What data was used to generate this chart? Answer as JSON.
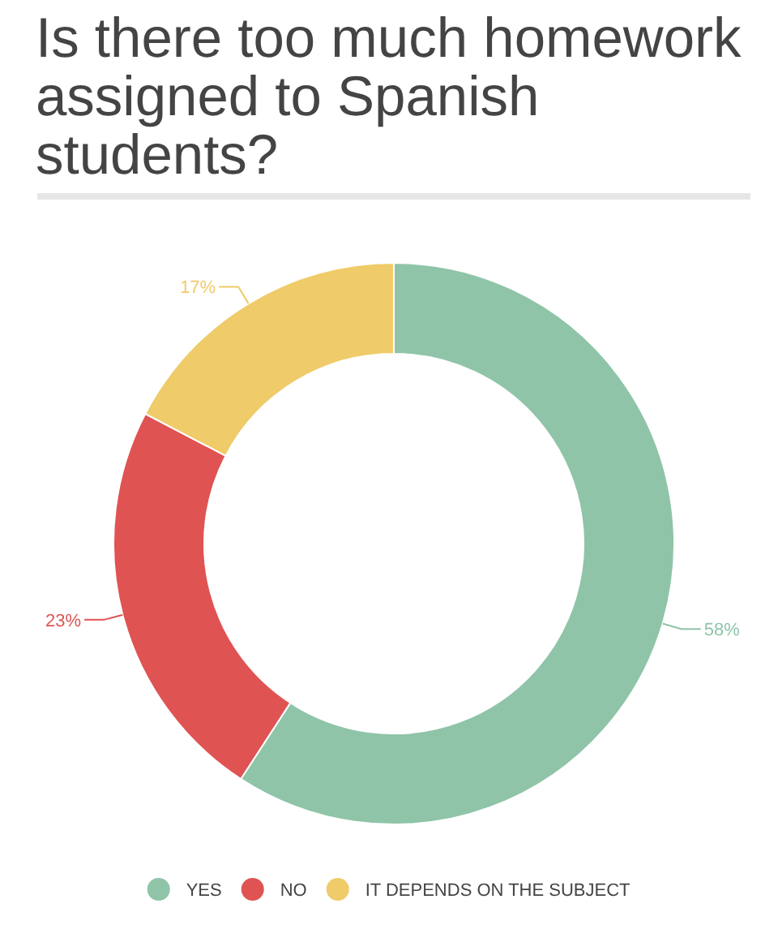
{
  "chart_data": {
    "type": "donut",
    "title": "Is there too much homework assigned to Spanish students?",
    "categories": [
      "YES",
      "NO",
      "IT DEPENDS ON THE SUBJECT"
    ],
    "values": [
      58,
      23,
      17
    ],
    "colors": [
      "#8fc4a8",
      "#df5353",
      "#efcb69"
    ],
    "value_labels": [
      "58%",
      "23%",
      "17%"
    ],
    "legend": "bottom"
  }
}
